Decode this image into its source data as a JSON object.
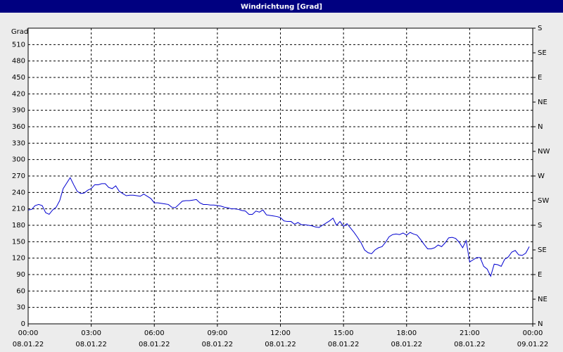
{
  "chart_data": {
    "type": "line",
    "title": "Windrichtung [Grad]",
    "ylabel": "Grad",
    "color": "#0000d0",
    "grid": true,
    "xlim": [
      0,
      1440
    ],
    "xticks": [
      {
        "value": 0,
        "label": "00:00",
        "date": "08.01.22"
      },
      {
        "value": 180,
        "label": "03:00",
        "date": "08.01.22"
      },
      {
        "value": 360,
        "label": "06:00",
        "date": "08.01.22"
      },
      {
        "value": 540,
        "label": "09:00",
        "date": "08.01.22"
      },
      {
        "value": 720,
        "label": "12:00",
        "date": "08.01.22"
      },
      {
        "value": 900,
        "label": "15:00",
        "date": "08.01.22"
      },
      {
        "value": 1080,
        "label": "18:00",
        "date": "08.01.22"
      },
      {
        "value": 1260,
        "label": "21:00",
        "date": "08.01.22"
      },
      {
        "value": 1440,
        "label": "00:00",
        "date": "09.01.22"
      }
    ],
    "ylim": [
      0,
      540
    ],
    "yticks": [
      0,
      30,
      60,
      90,
      120,
      150,
      180,
      210,
      240,
      270,
      300,
      330,
      360,
      390,
      420,
      450,
      480,
      510
    ],
    "y2lim": [
      0,
      540
    ],
    "y2ticks": [
      {
        "value": 0,
        "label": "N"
      },
      {
        "value": 45,
        "label": "NE"
      },
      {
        "value": 90,
        "label": "E"
      },
      {
        "value": 135,
        "label": "SE"
      },
      {
        "value": 180,
        "label": "S"
      },
      {
        "value": 225,
        "label": "SW"
      },
      {
        "value": 270,
        "label": "W"
      },
      {
        "value": 315,
        "label": "NW"
      },
      {
        "value": 360,
        "label": "N"
      },
      {
        "value": 405,
        "label": "NE"
      },
      {
        "value": 450,
        "label": "E"
      },
      {
        "value": 495,
        "label": "SE"
      },
      {
        "value": 540,
        "label": "S"
      }
    ],
    "x": [
      0,
      10,
      20,
      30,
      40,
      50,
      60,
      70,
      80,
      90,
      100,
      110,
      120,
      130,
      140,
      150,
      160,
      170,
      180,
      190,
      200,
      210,
      220,
      230,
      240,
      250,
      260,
      270,
      280,
      290,
      300,
      310,
      320,
      330,
      340,
      350,
      360,
      370,
      380,
      390,
      400,
      410,
      420,
      430,
      440,
      450,
      460,
      470,
      480,
      490,
      500,
      510,
      520,
      530,
      540,
      550,
      560,
      570,
      580,
      590,
      600,
      610,
      620,
      630,
      640,
      650,
      660,
      670,
      680,
      690,
      700,
      710,
      720,
      730,
      740,
      750,
      760,
      770,
      780,
      790,
      800,
      810,
      820,
      830,
      840,
      850,
      860,
      870,
      880,
      890,
      900,
      910,
      920,
      930,
      940,
      950,
      960,
      970,
      980,
      990,
      1000,
      1010,
      1020,
      1030,
      1040,
      1050,
      1060,
      1070,
      1080,
      1090,
      1100,
      1110,
      1120,
      1130,
      1140,
      1150,
      1160,
      1170,
      1180,
      1190,
      1200,
      1210,
      1220,
      1230,
      1240,
      1250,
      1260,
      1270,
      1280,
      1290,
      1300,
      1310,
      1320,
      1330,
      1340,
      1350,
      1360,
      1370,
      1380,
      1390,
      1400,
      1410,
      1420,
      1430
    ],
    "values": [
      208,
      209,
      216,
      218,
      216,
      203,
      200,
      208,
      213,
      225,
      247,
      257,
      267,
      254,
      242,
      238,
      239,
      244,
      247,
      254,
      254,
      256,
      256,
      249,
      247,
      252,
      242,
      238,
      234,
      235,
      235,
      234,
      233,
      237,
      233,
      229,
      221,
      221,
      220,
      219,
      218,
      213,
      212,
      218,
      224,
      225,
      225,
      226,
      227,
      221,
      218,
      218,
      217,
      217,
      216,
      215,
      213,
      212,
      210,
      210,
      209,
      207,
      206,
      200,
      200,
      206,
      204,
      208,
      199,
      198,
      197,
      196,
      194,
      188,
      187,
      187,
      182,
      185,
      181,
      181,
      180,
      179,
      177,
      176,
      180,
      184,
      188,
      193,
      180,
      187,
      178,
      183,
      175,
      167,
      158,
      148,
      135,
      130,
      128,
      135,
      139,
      141,
      149,
      159,
      163,
      164,
      163,
      166,
      162,
      167,
      164,
      162,
      154,
      145,
      137,
      137,
      139,
      144,
      141,
      148,
      157,
      158,
      156,
      149,
      139,
      152,
      113,
      117,
      121,
      121,
      105,
      100,
      87,
      109,
      108,
      105,
      118,
      122,
      131,
      134,
      126,
      125,
      129,
      141
    ]
  }
}
